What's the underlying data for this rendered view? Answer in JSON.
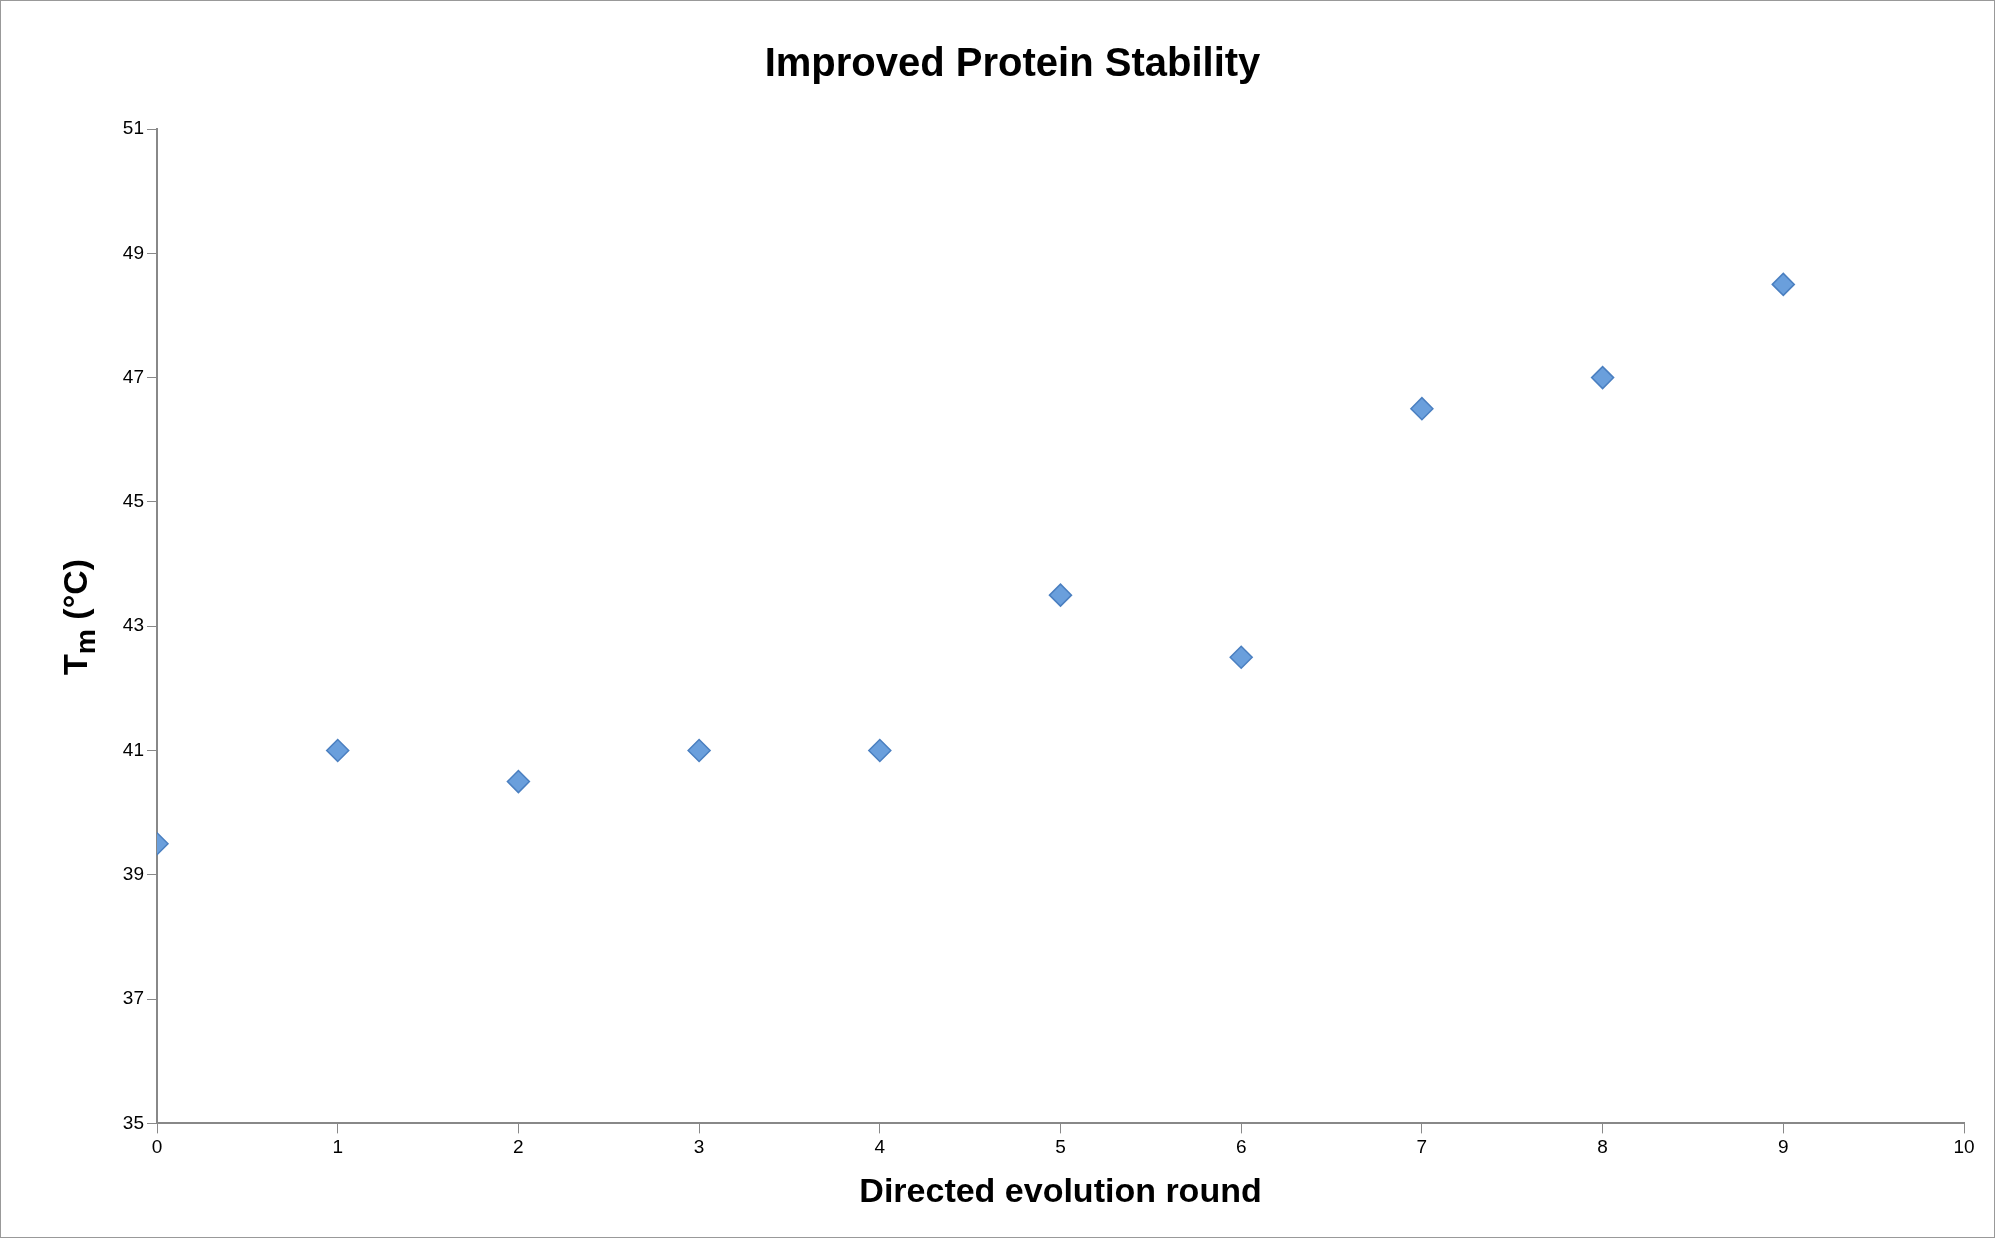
{
  "chart_data": {
    "type": "scatter",
    "title": "Improved Protein Stability",
    "xlabel": "Directed evolution round",
    "ylabel": "T$_{m}$ (°C)",
    "x": [
      0,
      1,
      2,
      3,
      4,
      5,
      6,
      7,
      8,
      9
    ],
    "values": [
      39.5,
      41,
      40.5,
      41,
      41,
      43.5,
      42.5,
      46.5,
      47,
      48.5
    ],
    "color": "#6a9fdc",
    "marker": "diamond",
    "grid": false,
    "xlim": [
      0,
      10
    ],
    "xticks": [
      0,
      1,
      2,
      3,
      4,
      5,
      6,
      7,
      8,
      9,
      10
    ],
    "ylim": [
      35,
      51
    ],
    "yticks": [
      35,
      37,
      39,
      41,
      43,
      45,
      47,
      49,
      51
    ]
  }
}
